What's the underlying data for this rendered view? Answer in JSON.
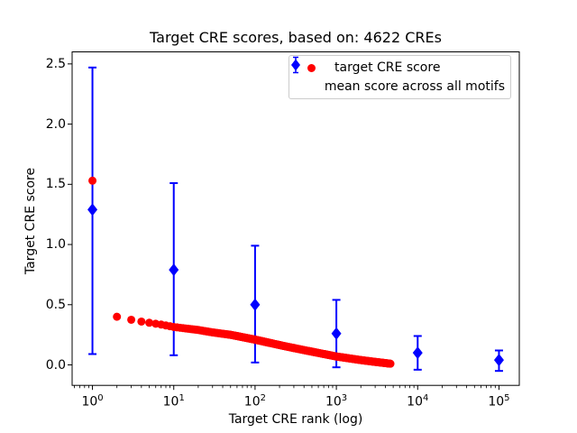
{
  "chart_data": {
    "type": "scatter",
    "title": "Target CRE scores, based on: 4622 CREs",
    "xlabel": "Target CRE rank (log)",
    "ylabel": "Target CRE score",
    "x_scale": "log",
    "xlim": [
      0.5623,
      177828
    ],
    "ylim": [
      -0.17,
      2.6
    ],
    "grid": false,
    "x_major_ticks": [
      1,
      10,
      100,
      1000,
      10000,
      100000
    ],
    "x_tick_labels": [
      {
        "base": "10",
        "exp": "0"
      },
      {
        "base": "10",
        "exp": "1"
      },
      {
        "base": "10",
        "exp": "2"
      },
      {
        "base": "10",
        "exp": "3"
      },
      {
        "base": "10",
        "exp": "4"
      },
      {
        "base": "10",
        "exp": "5"
      }
    ],
    "y_ticks": [
      0.0,
      0.5,
      1.0,
      1.5,
      2.0,
      2.5
    ],
    "y_tick_labels": [
      "0.0",
      "0.5",
      "1.0",
      "1.5",
      "2.0",
      "2.5"
    ],
    "legend": {
      "position": "upper right"
    },
    "colors": {
      "target": "#ff0000",
      "mean": "#0000ff",
      "axes": "#000000",
      "legend_edge": "#cccccc"
    },
    "series": [
      {
        "name": "target CRE score",
        "color": "#ff0000",
        "marker": "circle",
        "marker_size_px": 9,
        "n_points": 4622,
        "note": "one score per CRE rank 1..4622 plotted on log-rank axis; values between anchors interpolated linearly in log10(rank)",
        "anchors": [
          [
            1,
            1.53
          ],
          [
            2,
            0.4
          ],
          [
            3,
            0.375
          ],
          [
            4,
            0.36
          ],
          [
            5,
            0.35
          ],
          [
            7,
            0.335
          ],
          [
            10,
            0.315
          ],
          [
            20,
            0.29
          ],
          [
            30,
            0.27
          ],
          [
            50,
            0.25
          ],
          [
            100,
            0.21
          ],
          [
            200,
            0.165
          ],
          [
            300,
            0.14
          ],
          [
            500,
            0.11
          ],
          [
            1000,
            0.07
          ],
          [
            2000,
            0.04
          ],
          [
            3000,
            0.025
          ],
          [
            4622,
            0.01
          ]
        ]
      },
      {
        "name": "mean score across all motifs",
        "color": "#0000ff",
        "marker": "diamond",
        "x": [
          1,
          10,
          100,
          1000,
          10000,
          100000
        ],
        "mean": [
          1.29,
          0.79,
          0.5,
          0.26,
          0.1,
          0.04
        ],
        "err_low": [
          0.09,
          0.08,
          0.02,
          -0.02,
          -0.04,
          -0.05
        ],
        "err_high": [
          2.47,
          1.51,
          0.99,
          0.54,
          0.24,
          0.12
        ]
      }
    ]
  }
}
